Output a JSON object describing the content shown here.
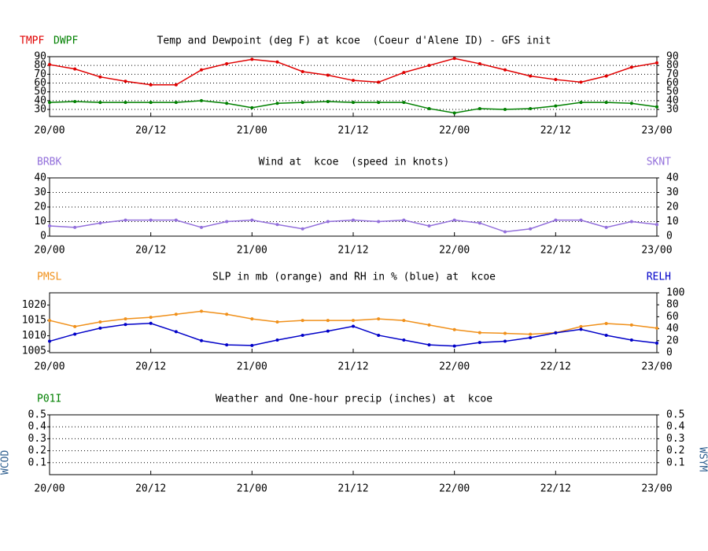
{
  "chart_data": [
    {
      "type": "line",
      "title": "Temp and Dewpoint (deg F) at kcoe  (Coeur d'Alene ID) - GFS init",
      "x": [
        0,
        3,
        6,
        9,
        12,
        15,
        18,
        21,
        24,
        27,
        30,
        33,
        36,
        39,
        42,
        45,
        48,
        51,
        54,
        57,
        60,
        63,
        66,
        69,
        72
      ],
      "xlim": [
        0,
        72
      ],
      "xticks": [
        {
          "value": 0,
          "label": "20/00"
        },
        {
          "value": 12,
          "label": "20/12"
        },
        {
          "value": 24,
          "label": "21/00"
        },
        {
          "value": 36,
          "label": "21/12"
        },
        {
          "value": 48,
          "label": "22/00"
        },
        {
          "value": 60,
          "label": "22/12"
        },
        {
          "value": 72,
          "label": "23/00"
        }
      ],
      "ylim": [
        22,
        90
      ],
      "yticks": [
        30,
        40,
        50,
        60,
        70,
        80,
        90
      ],
      "y2lim": [
        22,
        90
      ],
      "y2ticks": [
        30,
        40,
        50,
        60,
        70,
        80,
        90
      ],
      "grid": true,
      "series": [
        {
          "name": "TMPF",
          "color": "#e00000",
          "values": [
            81,
            76,
            67,
            62,
            58,
            58,
            75,
            82,
            87,
            84,
            73,
            69,
            63,
            61,
            72,
            80,
            88,
            82,
            75,
            68,
            64,
            61,
            68,
            78,
            83
          ]
        },
        {
          "name": "DWPF",
          "color": "#008000",
          "values": [
            38,
            39,
            38,
            38,
            38,
            38,
            40,
            37,
            32,
            37,
            38,
            39,
            38,
            38,
            38,
            31,
            26,
            31,
            30,
            31,
            34,
            38,
            38,
            37,
            33
          ]
        }
      ]
    },
    {
      "type": "line",
      "title": "Wind at  kcoe  (speed in knots)",
      "x": [
        0,
        3,
        6,
        9,
        12,
        15,
        18,
        21,
        24,
        27,
        30,
        33,
        36,
        39,
        42,
        45,
        48,
        51,
        54,
        57,
        60,
        63,
        66,
        69,
        72
      ],
      "xlim": [
        0,
        72
      ],
      "xticks": [
        {
          "value": 0,
          "label": "20/00"
        },
        {
          "value": 12,
          "label": "20/12"
        },
        {
          "value": 24,
          "label": "21/00"
        },
        {
          "value": 36,
          "label": "21/12"
        },
        {
          "value": 48,
          "label": "22/00"
        },
        {
          "value": 60,
          "label": "22/12"
        },
        {
          "value": 72,
          "label": "23/00"
        }
      ],
      "ylim": [
        0,
        40
      ],
      "yticks": [
        0,
        10,
        20,
        30,
        40
      ],
      "y2lim": [
        0,
        40
      ],
      "y2ticks": [
        0,
        10,
        20,
        30,
        40
      ],
      "grid": true,
      "left_label": {
        "text": "BRBK",
        "color": "#9370db"
      },
      "series": [
        {
          "name": "SKNT",
          "color": "#9370db",
          "axis": "y2",
          "values": [
            7,
            6,
            9,
            11,
            11,
            11,
            6,
            10,
            11,
            8,
            5,
            10,
            11,
            10,
            11,
            7,
            11,
            9,
            3,
            5,
            11,
            11,
            6,
            10,
            8
          ]
        }
      ]
    },
    {
      "type": "line",
      "title": "SLP in mb (orange) and RH in % (blue) at  kcoe",
      "x": [
        0,
        3,
        6,
        9,
        12,
        15,
        18,
        21,
        24,
        27,
        30,
        33,
        36,
        39,
        42,
        45,
        48,
        51,
        54,
        57,
        60,
        63,
        66,
        69,
        72
      ],
      "xlim": [
        0,
        72
      ],
      "xticks": [
        {
          "value": 0,
          "label": "20/00"
        },
        {
          "value": 12,
          "label": "20/12"
        },
        {
          "value": 24,
          "label": "21/00"
        },
        {
          "value": 36,
          "label": "21/12"
        },
        {
          "value": 48,
          "label": "22/00"
        },
        {
          "value": 60,
          "label": "22/12"
        },
        {
          "value": 72,
          "label": "23/00"
        }
      ],
      "ylim": [
        1004.5,
        1024
      ],
      "yticks": [
        1005,
        1010,
        1015,
        1020
      ],
      "y2lim": [
        0,
        100
      ],
      "y2ticks": [
        0,
        20,
        40,
        60,
        80,
        100
      ],
      "grid": false,
      "series": [
        {
          "name": "PMSL",
          "color": "#f0901a",
          "values": [
            1015,
            1013,
            1014.5,
            1015.5,
            1016,
            1017,
            1018,
            1017,
            1015.5,
            1014.5,
            1015,
            1015,
            1015,
            1015.5,
            1015,
            1013.5,
            1012,
            1011,
            1010.8,
            1010.5,
            1011,
            1013,
            1014,
            1013.5,
            1012.5
          ]
        },
        {
          "name": "RELH",
          "color": "#0000c8",
          "axis": "y2",
          "values": [
            19,
            31,
            41,
            47,
            49,
            35,
            20,
            13,
            12,
            21,
            29,
            36,
            44,
            29,
            21,
            13,
            11,
            17,
            19,
            25,
            33,
            39,
            29,
            21,
            16
          ]
        }
      ]
    },
    {
      "type": "line",
      "title": "Weather and One-hour precip (inches) at  kcoe",
      "x": [],
      "xlim": [
        0,
        72
      ],
      "xticks": [
        {
          "value": 0,
          "label": "20/00"
        },
        {
          "value": 12,
          "label": "20/12"
        },
        {
          "value": 24,
          "label": "21/00"
        },
        {
          "value": 36,
          "label": "21/12"
        },
        {
          "value": 48,
          "label": "22/00"
        },
        {
          "value": 60,
          "label": "22/12"
        },
        {
          "value": 72,
          "label": "23/00"
        }
      ],
      "ylim": [
        0,
        0.5
      ],
      "yticks": [
        0.1,
        0.2,
        0.3,
        0.4,
        0.5
      ],
      "y2lim": [
        0,
        0.5
      ],
      "y2ticks": [
        0.1,
        0.2,
        0.3,
        0.4,
        0.5
      ],
      "grid": true,
      "left_label": {
        "text": "P01I",
        "color": "#008000"
      },
      "side_left_label": {
        "text": "WCOD",
        "color": "#306090"
      },
      "side_right_label": {
        "text": "WSYM",
        "color": "#306090"
      },
      "series": []
    }
  ]
}
